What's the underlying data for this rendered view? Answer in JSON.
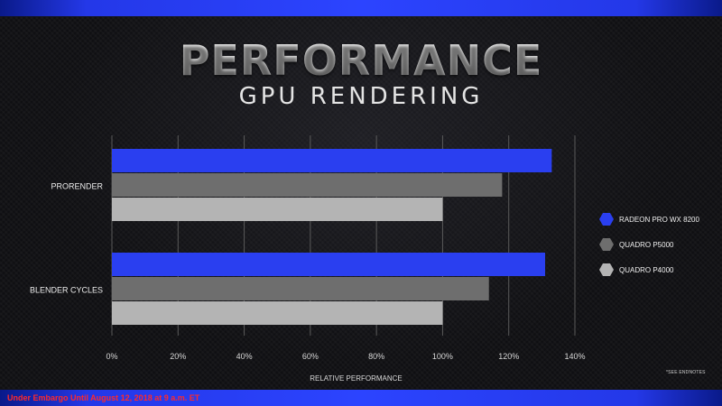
{
  "slide": {
    "title": "PERFORMANCE",
    "subtitle": "GPU RENDERING",
    "footer_embargo": "Under Embargo Until August 12, 2018 at 9 a.m. ET",
    "endnotes": "*SEE ENDNOTES"
  },
  "colors": {
    "accent_bar": "#2c44ff",
    "series_wx8200": "#2a3ff0",
    "series_p5000": "#6e6e6e",
    "series_p4000": "#b4b4b4",
    "embargo_text": "#ff2a2a"
  },
  "chart_data": {
    "type": "bar",
    "orientation": "horizontal",
    "categories": [
      "PRORENDER",
      "BLENDER CYCLES"
    ],
    "series": [
      {
        "name": "RADEON PRO WX 8200",
        "values": [
          133,
          131
        ]
      },
      {
        "name": "QUADRO P5000",
        "values": [
          118,
          114
        ]
      },
      {
        "name": "QUADRO P4000",
        "values": [
          100,
          100
        ]
      }
    ],
    "xlabel": "RELATIVE PERFORMANCE",
    "xlim": [
      0,
      140
    ],
    "xticks": [
      "0%",
      "20%",
      "40%",
      "60%",
      "80%",
      "100%",
      "120%",
      "140%"
    ],
    "grid": true,
    "legend": "right"
  }
}
